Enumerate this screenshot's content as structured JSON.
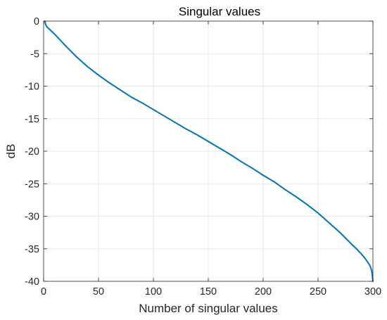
{
  "chart_data": {
    "type": "line",
    "title": "Singular values",
    "xlabel": "Number of singular values",
    "ylabel": "dB",
    "xlim": [
      0,
      300
    ],
    "ylim": [
      -40,
      0
    ],
    "xticks": [
      0,
      50,
      100,
      150,
      200,
      250,
      300
    ],
    "yticks": [
      0,
      -5,
      -10,
      -15,
      -20,
      -25,
      -30,
      -35,
      -40
    ],
    "grid": true,
    "series": [
      {
        "color": "#0072BD",
        "x": [
          1,
          2,
          3,
          5,
          10,
          20,
          30,
          40,
          50,
          60,
          70,
          80,
          90,
          100,
          110,
          120,
          130,
          140,
          150,
          160,
          170,
          180,
          190,
          200,
          210,
          220,
          230,
          240,
          250,
          260,
          270,
          280,
          285,
          290,
          293,
          295,
          297,
          298,
          299,
          300
        ],
        "y": [
          0,
          -0.6,
          -0.9,
          -1.2,
          -2.0,
          -3.8,
          -5.5,
          -7.0,
          -8.3,
          -9.5,
          -10.6,
          -11.7,
          -12.6,
          -13.6,
          -14.6,
          -15.6,
          -16.6,
          -17.5,
          -18.5,
          -19.5,
          -20.5,
          -21.6,
          -22.6,
          -23.7,
          -24.7,
          -25.9,
          -27.0,
          -28.2,
          -29.5,
          -31.0,
          -32.5,
          -34.2,
          -35.0,
          -35.9,
          -36.5,
          -37.0,
          -37.5,
          -37.9,
          -38.5,
          -40.0
        ]
      }
    ]
  }
}
